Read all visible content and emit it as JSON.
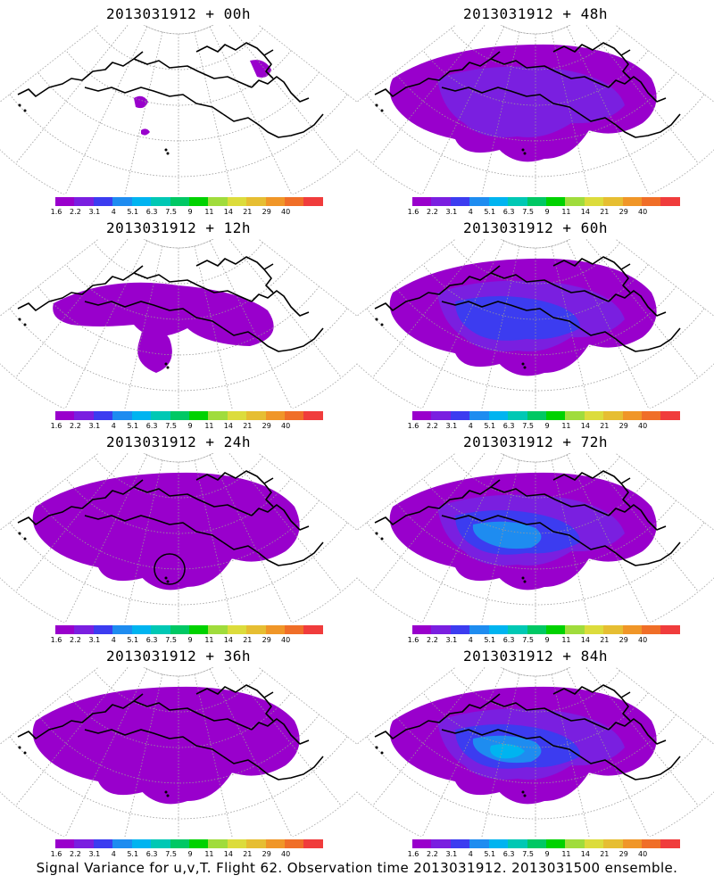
{
  "palette": [
    "#9900cc",
    "#7a1fe0",
    "#3c3cf0",
    "#1e8cf0",
    "#00b4f0",
    "#00c8b4",
    "#00c864",
    "#00d200",
    "#a0dc3c",
    "#dcdc3c",
    "#e6be32",
    "#f09628",
    "#f06e28",
    "#f03c3c",
    "#f01482"
  ],
  "levels": [
    "1.6",
    "2.2",
    "3.1",
    "4",
    "5.1",
    "6.3",
    "7.5",
    "9",
    "11",
    "14",
    "21",
    "29",
    "40"
  ],
  "panels": [
    {
      "title": "2013031912 + 00h",
      "intensity": 0,
      "marker": false
    },
    {
      "title": "2013031912 + 48h",
      "intensity": 3,
      "marker": false
    },
    {
      "title": "2013031912 + 12h",
      "intensity": 1,
      "marker": false
    },
    {
      "title": "2013031912 + 60h",
      "intensity": 4,
      "marker": false
    },
    {
      "title": "2013031912 + 24h",
      "intensity": 2,
      "marker": true
    },
    {
      "title": "2013031912 + 72h",
      "intensity": 5,
      "marker": false
    },
    {
      "title": "2013031912 + 36h",
      "intensity": 2,
      "marker": false
    },
    {
      "title": "2013031912 + 84h",
      "intensity": 6,
      "marker": false
    }
  ],
  "footer": "Signal Variance for u,v,T. Flight 62. Observation time 2013031912. 2013031500 ensemble."
}
